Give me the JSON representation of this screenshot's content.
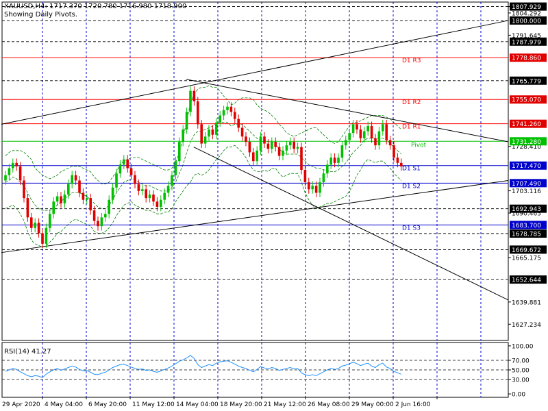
{
  "header": {
    "symbol_line": "XAUUSD,H4: 1717.370 1720.780 1716.980 1718.900",
    "pivots_note": "Showing Daily Pivots."
  },
  "rsi_label": "RSI(14) 41.27",
  "colors": {
    "bull": "#00c000",
    "bear": "#e00000",
    "resistance": "#ff0000",
    "pivot": "#00c000",
    "support": "#0000cc",
    "bands": "#008000",
    "rsi": "#1e90ff",
    "grid": "#0000cc",
    "trend": "#000000",
    "sr_fill": "#000000",
    "r_fill": "#e00000",
    "pv_fill": "#00c000",
    "s_fill": "#0000cc"
  },
  "chart_data": {
    "type": "candlestick",
    "symbol": "XAUUSD",
    "timeframe": "H4",
    "y_range": [
      1618.0,
      1810.5
    ],
    "x_tick_labels": [
      "29 Apr 2020",
      "4 May 04:00",
      "6 May 20:00",
      "11 May 12:00",
      "14 May 04:00",
      "18 May 20:00",
      "21 May 12:00",
      "26 May 08:00",
      "29 May 00:00",
      "2 Jun 16:00"
    ],
    "y_tick_labels": [
      "1807.929",
      "1804.292",
      "1791.645",
      "1728.410",
      "1703.116",
      "1690.463",
      "1665.175",
      "1639.881",
      "1627.234"
    ],
    "price_levels": [
      {
        "value": 1807.929,
        "label": "1807.929",
        "kind": "sr"
      },
      {
        "value": 1800.0,
        "label": "1800.000",
        "kind": "sr"
      },
      {
        "value": 1787.979,
        "label": "1787.979",
        "kind": "sr"
      },
      {
        "value": 1778.86,
        "label": "1778.860",
        "kind": "r",
        "pivot_text": "D1 R3"
      },
      {
        "value": 1765.779,
        "label": "1765.779",
        "kind": "sr"
      },
      {
        "value": 1755.07,
        "label": "1755.070",
        "kind": "r",
        "pivot_text": "D1 R2"
      },
      {
        "value": 1741.26,
        "label": "1741.260",
        "kind": "r",
        "pivot_text": "D1 R1"
      },
      {
        "value": 1731.28,
        "label": "1731.280",
        "kind": "pv",
        "pivot_text": "Pivot"
      },
      {
        "value": 1717.47,
        "label": "1717.470",
        "kind": "s",
        "pivot_text": "D1 S1"
      },
      {
        "value": 1707.49,
        "label": "1707.490",
        "kind": "s",
        "pivot_text": "D1 S2"
      },
      {
        "value": 1692.943,
        "label": "1692.943",
        "kind": "sr"
      },
      {
        "value": 1683.7,
        "label": "1683.700",
        "kind": "s",
        "pivot_text": "D1 S3"
      },
      {
        "value": 1678.785,
        "label": "1678.785",
        "kind": "sr"
      },
      {
        "value": 1669.672,
        "label": "1669.672",
        "kind": "sr"
      },
      {
        "value": 1652.644,
        "label": "1652.644",
        "kind": "sr"
      }
    ],
    "trendlines": [
      {
        "name": "upper-channel",
        "from": [
          0,
          1741.0
        ],
        "to": [
          121,
          1800.0
        ]
      },
      {
        "name": "upper-resistance",
        "from": [
          50,
          1766.5
        ],
        "to": [
          121,
          1731.0
        ]
      },
      {
        "name": "lower-support",
        "from": [
          0,
          1668.0
        ],
        "to": [
          121,
          1709.0
        ]
      },
      {
        "name": "descending",
        "from": [
          52,
          1728.0
        ],
        "to": [
          121,
          1641.0
        ]
      }
    ],
    "closes": [
      1712,
      1716,
      1719,
      1717,
      1709,
      1699,
      1688,
      1682,
      1685,
      1679,
      1673,
      1682,
      1690,
      1697,
      1700,
      1696,
      1701,
      1707,
      1712,
      1709,
      1702,
      1698,
      1699,
      1692,
      1686,
      1683,
      1688,
      1690,
      1698,
      1705,
      1713,
      1718,
      1721,
      1716,
      1712,
      1707,
      1703,
      1704,
      1699,
      1701,
      1697,
      1694,
      1698,
      1702,
      1706,
      1712,
      1720,
      1731,
      1738,
      1748,
      1760,
      1754,
      1741,
      1730,
      1734,
      1738,
      1735,
      1742,
      1746,
      1749,
      1751,
      1748,
      1744,
      1739,
      1734,
      1731,
      1725,
      1720,
      1726,
      1734,
      1730,
      1727,
      1731,
      1728,
      1723,
      1726,
      1729,
      1731,
      1727,
      1728,
      1715,
      1708,
      1704,
      1706,
      1702,
      1708,
      1713,
      1718,
      1722,
      1719,
      1722,
      1729,
      1732,
      1736,
      1741,
      1738,
      1733,
      1737,
      1740,
      1733,
      1729,
      1737,
      1741,
      1732,
      1729,
      1722,
      1719,
      1717
    ],
    "bollinger": {
      "upper": [
        1723,
        1725,
        1726,
        1726,
        1726,
        1725,
        1723,
        1721,
        1716,
        1714,
        1712,
        1711,
        1710,
        1711,
        1712,
        1714,
        1715,
        1716,
        1717,
        1717,
        1717,
        1716,
        1715,
        1714,
        1711,
        1709,
        1707,
        1707,
        1708,
        1711,
        1714,
        1718,
        1720,
        1721,
        1722,
        1722,
        1722,
        1721,
        1720,
        1719,
        1718,
        1717,
        1716,
        1715,
        1715,
        1716,
        1719,
        1725,
        1733,
        1743,
        1753,
        1758,
        1761,
        1762,
        1762,
        1763,
        1762,
        1762,
        1760,
        1757,
        1755,
        1752,
        1753,
        1755,
        1756,
        1756,
        1756,
        1755,
        1752,
        1750,
        1749,
        1748,
        1746,
        1744,
        1741,
        1739,
        1736,
        1735,
        1734,
        1735,
        1736,
        1737,
        1738,
        1739,
        1739,
        1737,
        1735,
        1733,
        1731,
        1730,
        1731,
        1734,
        1737,
        1740,
        1742,
        1742,
        1743,
        1744,
        1745,
        1746,
        1746,
        1746,
        1746,
        1745,
        1744,
        1742,
        1740,
        1738
      ],
      "lower": [
        1693,
        1694,
        1695,
        1693,
        1690,
        1686,
        1680,
        1675,
        1673,
        1672,
        1671,
        1672,
        1674,
        1676,
        1679,
        1680,
        1682,
        1684,
        1686,
        1687,
        1686,
        1685,
        1684,
        1683,
        1680,
        1679,
        1679,
        1680,
        1682,
        1685,
        1689,
        1692,
        1695,
        1696,
        1697,
        1695,
        1694,
        1693,
        1692,
        1692,
        1691,
        1690,
        1690,
        1691,
        1691,
        1693,
        1697,
        1700,
        1703,
        1706,
        1708,
        1712,
        1713,
        1712,
        1713,
        1715,
        1718,
        1721,
        1723,
        1726,
        1728,
        1728,
        1729,
        1727,
        1725,
        1722,
        1718,
        1715,
        1714,
        1714,
        1715,
        1714,
        1716,
        1716,
        1713,
        1711,
        1712,
        1713,
        1713,
        1713,
        1708,
        1702,
        1698,
        1695,
        1693,
        1694,
        1695,
        1696,
        1696,
        1697,
        1698,
        1699,
        1700,
        1703,
        1707,
        1712,
        1715,
        1719,
        1721,
        1720,
        1719,
        1720,
        1720,
        1718,
        1716,
        1713,
        1711,
        1709
      ],
      "middle": [
        1708,
        1709,
        1711,
        1710,
        1708,
        1706,
        1702,
        1698,
        1695,
        1693,
        1692,
        1692,
        1692,
        1693,
        1695,
        1697,
        1699,
        1700,
        1702,
        1702,
        1702,
        1701,
        1700,
        1698,
        1696,
        1694,
        1693,
        1693,
        1695,
        1698,
        1702,
        1705,
        1708,
        1709,
        1710,
        1709,
        1708,
        1707,
        1706,
        1706,
        1705,
        1704,
        1703,
        1703,
        1703,
        1705,
        1708,
        1713,
        1718,
        1725,
        1731,
        1735,
        1737,
        1737,
        1738,
        1739,
        1740,
        1742,
        1742,
        1742,
        1742,
        1740,
        1741,
        1741,
        1741,
        1739,
        1737,
        1735,
        1733,
        1732,
        1732,
        1731,
        1731,
        1730,
        1727,
        1725,
        1724,
        1724,
        1724,
        1724,
        1722,
        1720,
        1718,
        1717,
        1716,
        1716,
        1715,
        1715,
        1714,
        1714,
        1715,
        1717,
        1719,
        1722,
        1725,
        1727,
        1729,
        1732,
        1733,
        1733,
        1733,
        1733,
        1733,
        1732,
        1730,
        1728,
        1726,
        1724
      ]
    },
    "rsi": {
      "name": "RSI(14)",
      "value": 41.27,
      "y_range": [
        -7,
        107
      ],
      "levels": [
        30,
        50,
        70
      ],
      "y_tick_labels": [
        "100.00",
        "70.00",
        "50.00",
        "30.00",
        "0.00"
      ],
      "values": [
        47,
        50,
        53,
        51,
        46,
        42,
        38,
        36,
        38,
        37,
        34,
        41,
        46,
        50,
        53,
        49,
        52,
        55,
        58,
        56,
        51,
        48,
        49,
        45,
        41,
        40,
        43,
        45,
        50,
        55,
        58,
        61,
        62,
        59,
        56,
        53,
        51,
        52,
        49,
        50,
        47,
        45,
        48,
        51,
        54,
        58,
        63,
        68,
        71,
        75,
        80,
        74,
        61,
        55,
        58,
        61,
        59,
        64,
        67,
        68,
        69,
        66,
        62,
        58,
        55,
        53,
        49,
        46,
        51,
        57,
        54,
        52,
        55,
        53,
        49,
        51,
        53,
        55,
        52,
        53,
        44,
        40,
        38,
        40,
        38,
        42,
        46,
        50,
        53,
        51,
        53,
        58,
        60,
        63,
        66,
        63,
        59,
        62,
        64,
        58,
        55,
        61,
        64,
        56,
        53,
        47,
        44,
        41
      ]
    }
  }
}
